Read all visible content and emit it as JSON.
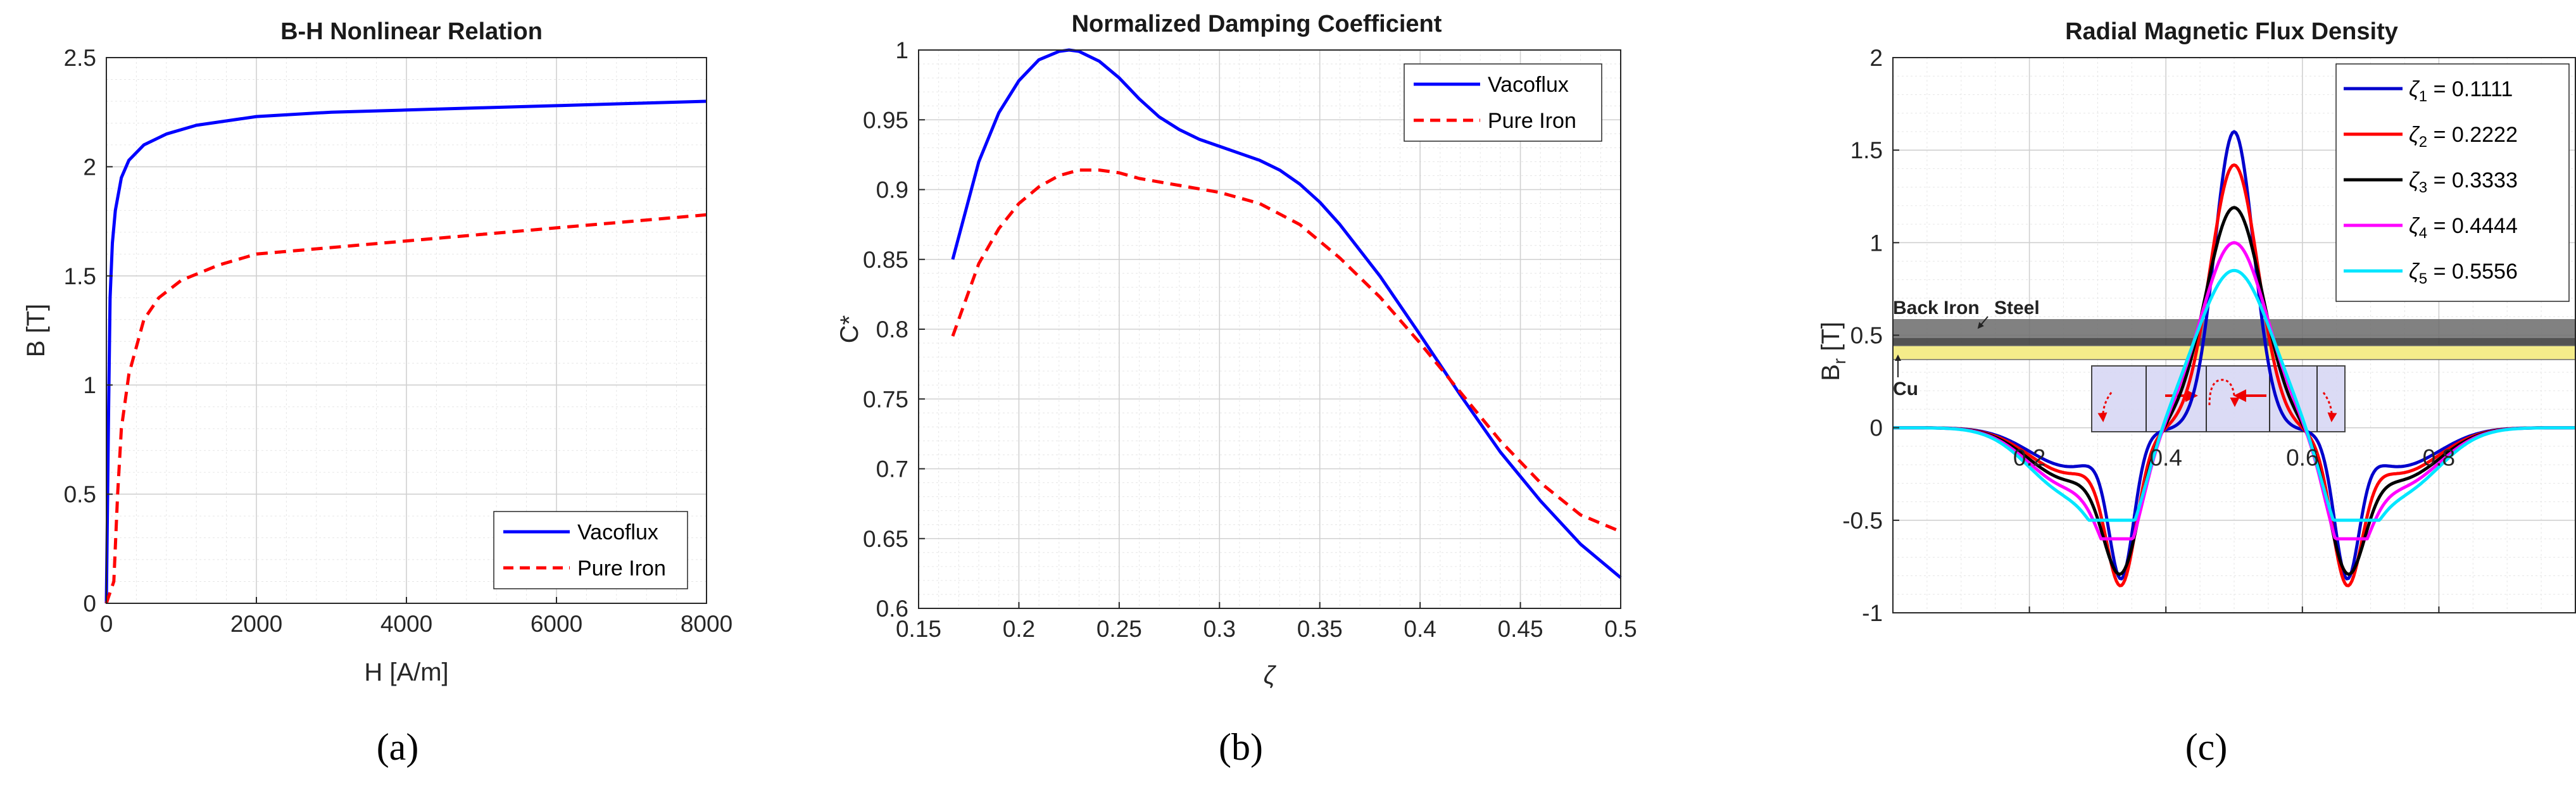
{
  "chart_data": [
    {
      "id": "a",
      "type": "line",
      "title": "B-H Nonlinear Relation",
      "xlabel": "H [A/m]",
      "ylabel": "B [T]",
      "xlim": [
        0,
        8000
      ],
      "ylim": [
        0,
        2.5
      ],
      "xticks": [
        0,
        2000,
        4000,
        6000,
        8000
      ],
      "xtick_labels": [
        "0",
        "2000",
        "4000",
        "6000",
        "8000"
      ],
      "yticks": [
        0,
        0.5,
        1,
        1.5,
        2,
        2.5
      ],
      "ytick_labels": [
        "0",
        "0.5",
        "1",
        "1.5",
        "2",
        "2.5"
      ],
      "grid": true,
      "legend_position": "bottom-right",
      "series": [
        {
          "name": "Vacoflux",
          "color": "#0000ff",
          "dash": "solid",
          "x": [
            0,
            30,
            50,
            80,
            120,
            200,
            300,
            500,
            800,
            1200,
            2000,
            3000,
            4000,
            5000,
            6000,
            7000,
            8000
          ],
          "y": [
            0,
            0.9,
            1.4,
            1.65,
            1.8,
            1.95,
            2.03,
            2.1,
            2.15,
            2.19,
            2.23,
            2.25,
            2.26,
            2.27,
            2.28,
            2.29,
            2.3
          ]
        },
        {
          "name": "Pure Iron",
          "color": "#ff0000",
          "dash": "dashed",
          "x": [
            0,
            100,
            150,
            200,
            300,
            500,
            700,
            1000,
            1500,
            2000,
            3000,
            4000,
            5000,
            6000,
            7000,
            8000
          ],
          "y": [
            0,
            0.1,
            0.5,
            0.8,
            1.05,
            1.3,
            1.4,
            1.48,
            1.55,
            1.6,
            1.63,
            1.66,
            1.69,
            1.72,
            1.75,
            1.78
          ]
        }
      ],
      "caption": "(a)"
    },
    {
      "id": "b",
      "type": "line",
      "title": "Normalized Damping Coefficient",
      "xlabel": "ζ",
      "ylabel": "C*",
      "xlim": [
        0.15,
        0.5
      ],
      "ylim": [
        0.6,
        1.0
      ],
      "xticks": [
        0.15,
        0.2,
        0.25,
        0.3,
        0.35,
        0.4,
        0.45,
        0.5
      ],
      "xtick_labels": [
        "0.15",
        "0.2",
        "0.25",
        "0.3",
        "0.35",
        "0.4",
        "0.45",
        "0.5"
      ],
      "yticks": [
        0.6,
        0.65,
        0.7,
        0.75,
        0.8,
        0.85,
        0.9,
        0.95,
        1.0
      ],
      "ytick_labels": [
        "0.6",
        "0.65",
        "0.7",
        "0.75",
        "0.8",
        "0.85",
        "0.9",
        "0.95",
        "1"
      ],
      "grid": true,
      "legend_position": "top-right",
      "series": [
        {
          "name": "Vacoflux",
          "color": "#0000ff",
          "dash": "solid",
          "x": [
            0.167,
            0.18,
            0.19,
            0.2,
            0.21,
            0.22,
            0.225,
            0.23,
            0.24,
            0.25,
            0.26,
            0.27,
            0.28,
            0.29,
            0.3,
            0.31,
            0.32,
            0.33,
            0.34,
            0.35,
            0.36,
            0.38,
            0.4,
            0.42,
            0.44,
            0.46,
            0.48,
            0.5
          ],
          "y": [
            0.85,
            0.92,
            0.955,
            0.978,
            0.993,
            0.999,
            1.0,
            0.999,
            0.992,
            0.98,
            0.965,
            0.952,
            0.943,
            0.936,
            0.931,
            0.926,
            0.921,
            0.914,
            0.904,
            0.891,
            0.875,
            0.838,
            0.796,
            0.753,
            0.712,
            0.677,
            0.646,
            0.622
          ]
        },
        {
          "name": "Pure Iron",
          "color": "#ff0000",
          "dash": "dashed",
          "x": [
            0.167,
            0.18,
            0.19,
            0.2,
            0.21,
            0.22,
            0.23,
            0.24,
            0.25,
            0.26,
            0.28,
            0.3,
            0.32,
            0.34,
            0.36,
            0.38,
            0.4,
            0.42,
            0.44,
            0.46,
            0.48,
            0.5
          ],
          "y": [
            0.795,
            0.847,
            0.872,
            0.89,
            0.902,
            0.91,
            0.914,
            0.914,
            0.912,
            0.908,
            0.903,
            0.898,
            0.89,
            0.875,
            0.851,
            0.823,
            0.79,
            0.755,
            0.72,
            0.69,
            0.667,
            0.655
          ]
        }
      ],
      "caption": "(b)"
    },
    {
      "id": "c",
      "type": "line",
      "title": "Radial Magnetic Flux Density",
      "xlabel": "",
      "ylabel": "B_r [T]",
      "xlim": [
        0,
        1
      ],
      "ylim": [
        -1,
        2
      ],
      "xticks": [
        0.2,
        0.4,
        0.6,
        0.8
      ],
      "xtick_labels": [
        "0.2",
        "0.4",
        "0.6",
        "0.8"
      ],
      "yticks": [
        -1,
        -0.5,
        0,
        0.5,
        1,
        1.5,
        2
      ],
      "ytick_labels": [
        "-1",
        "-0.5",
        "0",
        "0.5",
        "1",
        "1.5",
        "2"
      ],
      "grid": true,
      "legend_position": "top-right",
      "series": [
        {
          "name": "ζ1",
          "sub": "1",
          "value": "0.1111",
          "color": "#0000cc",
          "peak": 1.6,
          "trough": -0.72
        },
        {
          "name": "ζ2",
          "sub": "2",
          "value": "0.2222",
          "color": "#ff0000",
          "peak": 1.42,
          "trough": -0.74
        },
        {
          "name": "ζ3",
          "sub": "3",
          "value": "0.3333",
          "color": "#000000",
          "peak": 1.19,
          "trough": -0.66
        },
        {
          "name": "ζ4",
          "sub": "4",
          "value": "0.4444",
          "color": "#ff00ff",
          "peak": 1.0,
          "trough": -0.6
        },
        {
          "name": "ζ5",
          "sub": "5",
          "value": "0.5556",
          "color": "#00e6ff",
          "peak": 0.85,
          "trough": -0.5
        }
      ],
      "annotations": [
        "Back Iron",
        "Steel",
        "Cu"
      ],
      "caption": "(c)"
    }
  ]
}
